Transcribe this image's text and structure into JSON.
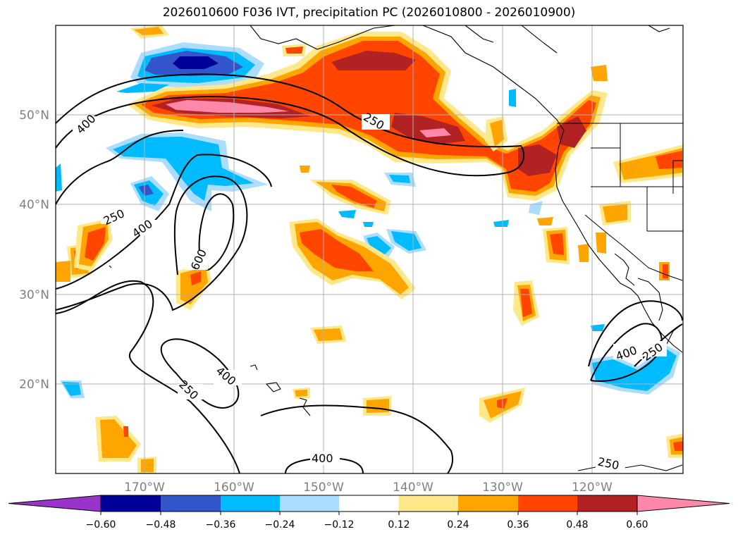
{
  "title": "2026010600 F036 IVT, precipitation PC (2026010800 - 2026010900)",
  "lat_labels": [
    "50°N",
    "40°N",
    "30°N",
    "20°N"
  ],
  "lon_labels": [
    "170°W",
    "160°W",
    "150°W",
    "140°W",
    "130°W",
    "120°W"
  ],
  "colorbar": {
    "ticks": [
      "−0.60",
      "−0.48",
      "−0.36",
      "−0.24",
      "−0.12",
      "0.12",
      "0.24",
      "0.36",
      "0.48",
      "0.60"
    ],
    "colors": [
      "#9933cc",
      "#000099",
      "#3355cc",
      "#00bbff",
      "#aaddff",
      "#ffffff",
      "#ffe88a",
      "#ffa500",
      "#ff4500",
      "#b22222",
      "#ff88aa"
    ]
  },
  "contour_labels": [
    "400",
    "250",
    "250",
    "400",
    "600",
    "400",
    "250",
    "400",
    "400",
    "250",
    "250"
  ]
}
